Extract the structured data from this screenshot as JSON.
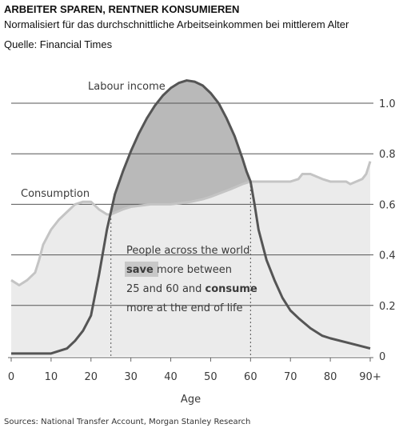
{
  "header": {
    "title": "ARBEITER SPAREN, RENTNER KONSUMIEREN",
    "subtitle": "Normalisiert für das durchschnittliche Arbeitseinkommen bei mittlerem Alter",
    "source": "Quelle: Financial Times"
  },
  "chart_data": {
    "type": "area",
    "xlabel": "Age",
    "x_ticks": [
      "0",
      "10",
      "20",
      "30",
      "40",
      "50",
      "60",
      "70",
      "80",
      "90+"
    ],
    "y_ticks": [
      "0",
      "0.2",
      "0.4",
      "0.6",
      "0.8",
      "1.0"
    ],
    "xlim": [
      0,
      90
    ],
    "ylim": [
      0,
      1.0
    ],
    "grid": "horizontal",
    "series": [
      {
        "name": "Labour income",
        "color": "#555555",
        "x": [
          0,
          5,
          10,
          12,
          14,
          16,
          18,
          20,
          22,
          24,
          26,
          28,
          30,
          32,
          34,
          36,
          38,
          40,
          42,
          44,
          46,
          48,
          50,
          52,
          54,
          56,
          58,
          59,
          60,
          61,
          62,
          64,
          66,
          68,
          70,
          72,
          75,
          78,
          80,
          85,
          90
        ],
        "y": [
          0.01,
          0.01,
          0.01,
          0.02,
          0.03,
          0.06,
          0.1,
          0.16,
          0.32,
          0.5,
          0.64,
          0.73,
          0.81,
          0.88,
          0.94,
          0.99,
          1.03,
          1.06,
          1.08,
          1.09,
          1.085,
          1.07,
          1.04,
          1.0,
          0.94,
          0.87,
          0.78,
          0.73,
          0.69,
          0.6,
          0.5,
          0.38,
          0.3,
          0.23,
          0.18,
          0.15,
          0.11,
          0.08,
          0.07,
          0.05,
          0.03
        ]
      },
      {
        "name": "Consumption",
        "color": "#c4c4c4",
        "x": [
          0,
          2,
          4,
          6,
          7,
          8,
          10,
          12,
          14,
          16,
          18,
          20,
          22,
          24,
          25,
          28,
          30,
          35,
          40,
          45,
          48,
          50,
          55,
          58,
          60,
          62,
          65,
          70,
          72,
          73,
          75,
          78,
          80,
          82,
          84,
          85,
          88,
          89,
          90
        ],
        "y": [
          0.3,
          0.28,
          0.3,
          0.33,
          0.38,
          0.44,
          0.5,
          0.54,
          0.57,
          0.6,
          0.61,
          0.61,
          0.58,
          0.56,
          0.56,
          0.58,
          0.59,
          0.6,
          0.6,
          0.61,
          0.62,
          0.63,
          0.66,
          0.68,
          0.69,
          0.69,
          0.69,
          0.69,
          0.7,
          0.72,
          0.72,
          0.7,
          0.69,
          0.69,
          0.69,
          0.68,
          0.7,
          0.72,
          0.77
        ]
      }
    ],
    "markers_x": [
      25,
      60
    ],
    "annotation": {
      "line1": "People across the world",
      "line2_bold": "save",
      "line2_rest": " more between",
      "line3_start": "25 and 60 and ",
      "line3_bold": "consume",
      "line4": "more at the end of life"
    },
    "source_bottom": "Sources: National Transfer Account, Morgan Stanley Research"
  }
}
